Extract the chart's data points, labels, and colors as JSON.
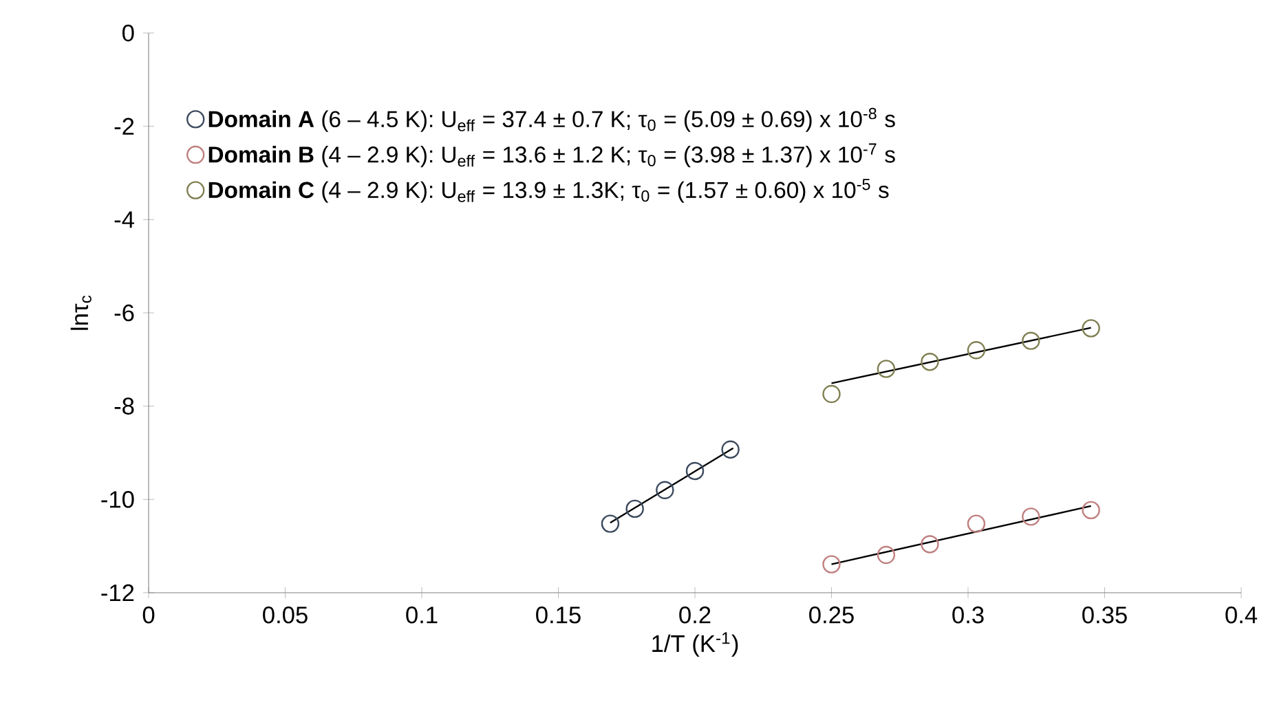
{
  "chart_data": {
    "type": "scatter",
    "xlabel": "1/T (K$^{-1}$)",
    "ylabel": "lnτ$_{c}$",
    "xlim": [
      0,
      0.4
    ],
    "xticks": [
      0,
      0.05,
      0.1,
      0.15,
      0.2,
      0.25,
      0.3,
      0.35,
      0.4
    ],
    "ylim": [
      -12,
      0
    ],
    "yticks": [
      -12,
      -10,
      -8,
      -6,
      -4,
      -2,
      0
    ],
    "legend": "top left",
    "marker": "circle",
    "series": [
      {
        "name": "**Domain A** (6 – 4.5 K): U$_{eff}$ = 37.4 ± 0.7 K; τ$_{0}$ = (5.09 ± 0.69) x 10$^{-8}$ s",
        "color": "#3b4a5e",
        "x": [
          0.169,
          0.178,
          0.189,
          0.2,
          0.213
        ],
        "values": [
          -10.52,
          -10.2,
          -9.8,
          -9.39,
          -8.93
        ]
      },
      {
        "name": "**Domain B** (4 – 2.9 K): U$_{eff}$ = 13.6 ± 1.2 K; τ$_{0}$ = (3.98 ± 1.37) x 10$^{-7}$ s",
        "color": "#c07f7f",
        "x": [
          0.25,
          0.27,
          0.286,
          0.303,
          0.323,
          0.345
        ],
        "values": [
          -11.39,
          -11.19,
          -10.96,
          -10.52,
          -10.37,
          -10.23
        ]
      },
      {
        "name": "**Domain C** (4 – 2.9 K): U$_{eff}$ = 13.9 ± 1.3K; τ$_{0}$ = (1.57 ± 0.60) x 10$^{-5}$ s",
        "color": "#7f7f52",
        "x": [
          0.25,
          0.27,
          0.286,
          0.303,
          0.323,
          0.345
        ],
        "values": [
          -7.74,
          -7.2,
          -7.05,
          -6.8,
          -6.6,
          -6.33
        ]
      },
      {
        "type": "line",
        "marker": "none",
        "color": "#000000",
        "x": [
          0.169,
          0.214
        ],
        "values": [
          -10.5,
          -8.9
        ]
      },
      {
        "type": "line",
        "marker": "none",
        "color": "#000000",
        "x": [
          0.25,
          0.345
        ],
        "values": [
          -11.39,
          -10.14
        ]
      },
      {
        "type": "line",
        "marker": "none",
        "color": "#000000",
        "x": [
          0.25,
          0.345
        ],
        "values": [
          -7.51,
          -6.32
        ]
      }
    ]
  }
}
